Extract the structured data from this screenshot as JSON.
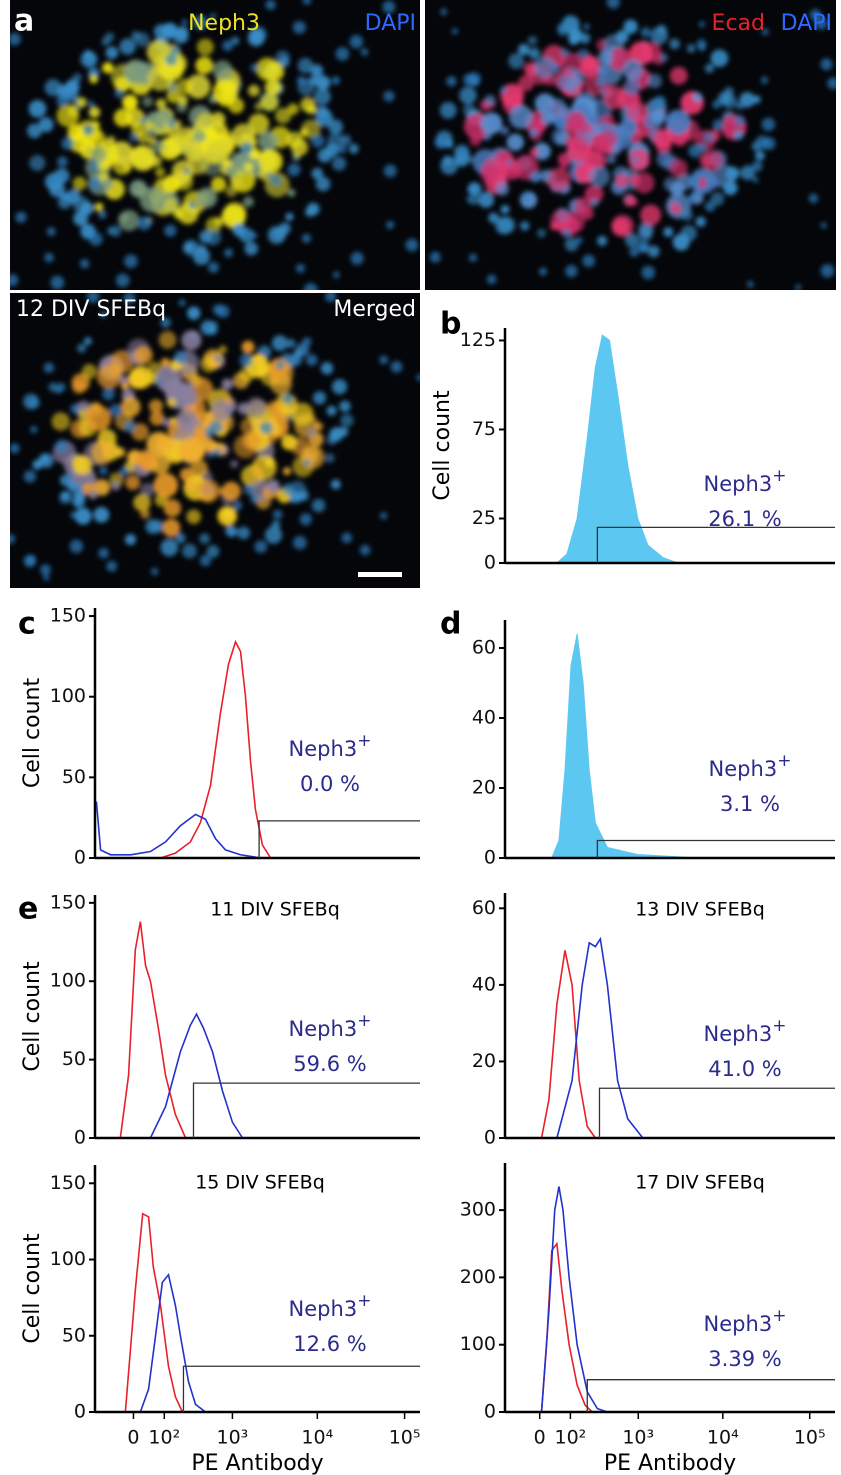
{
  "panel_a": {
    "panel": "a",
    "top_left": [
      "Neph3",
      "DAPI"
    ],
    "top_right": [
      "Ecad",
      "DAPI"
    ],
    "bottom_left": [
      "12 DIV SFEBq",
      "Merged"
    ]
  },
  "chart_data": [
    {
      "type": "area",
      "panel": "b",
      "y_label": "Cell count",
      "xscale": "biexponential",
      "xlim": [
        -120,
        195000
      ],
      "ylim": [
        0,
        132
      ],
      "yticks": [
        0,
        25,
        75,
        125
      ],
      "series": [
        {
          "color": "#5cc8f2",
          "x": [
            46,
            84,
            135,
            201,
            268,
            339,
            425,
            546,
            738,
            987,
            1314,
            2002,
            3025
          ],
          "values": [
            0,
            5,
            25,
            70,
            110,
            128,
            125,
            95,
            55,
            25,
            10,
            3,
            0
          ]
        }
      ],
      "gate": {
        "x": 287,
        "level": 20
      },
      "gate_label": "Neph3",
      "gate_label_sup": "+",
      "gate_percent": "26.1 %"
    },
    {
      "type": "line",
      "panel": "c",
      "y_label": "Cell count",
      "xscale": "biexponential",
      "xlim": [
        -140,
        150000
      ],
      "ylim": [
        0,
        155
      ],
      "yticks": [
        0,
        50,
        100,
        150
      ],
      "series": [
        {
          "color": "#e8202a",
          "x": [
            83,
            161,
            278,
            386,
            527,
            709,
            893,
            1091,
            1257,
            1444,
            1659,
            1900,
            2300,
            2867
          ],
          "values": [
            0,
            3,
            10,
            22,
            45,
            90,
            120,
            134,
            128,
            100,
            60,
            30,
            8,
            0
          ]
        },
        {
          "color": "#2233cc",
          "x": [
            -132,
            -110,
            -66,
            -6,
            45,
            106,
            195,
            329,
            452,
            612,
            820,
            1257,
            2182
          ],
          "values": [
            35,
            5,
            2,
            2,
            4,
            10,
            20,
            27,
            24,
            12,
            5,
            2,
            0
          ]
        }
      ],
      "gate": {
        "x": 2100,
        "level": 23
      },
      "gate_label": "Neph3",
      "gate_label_sup": "+",
      "gate_percent": "0.0 %"
    },
    {
      "type": "area",
      "panel": "d",
      "xscale": "biexponential",
      "xlim": [
        -120,
        195000
      ],
      "ylim": [
        0,
        68
      ],
      "yticks": [
        0,
        20,
        40,
        60
      ],
      "series": [
        {
          "color": "#5cc8f2",
          "x": [
            30,
            53,
            76,
            103,
            135,
            172,
            216,
            268,
            398,
            987,
            5216
          ],
          "values": [
            0,
            5,
            25,
            55,
            64,
            50,
            25,
            10,
            3,
            1,
            0
          ]
        }
      ],
      "gate": {
        "x": 287,
        "level": 5
      },
      "gate_label": "Neph3",
      "gate_label_sup": "+",
      "gate_percent": "3.1 %"
    },
    {
      "type": "line",
      "panel": "e",
      "title": "11 DIV SFEBq",
      "y_label": "Cell count",
      "xscale": "biexponential",
      "xlim": [
        -140,
        150000
      ],
      "ylim": [
        0,
        155
      ],
      "yticks": [
        0,
        50,
        100,
        150
      ],
      "series": [
        {
          "color": "#e8202a",
          "x": [
            -33,
            -11,
            4,
            16,
            30,
            45,
            74,
            106,
            161,
            235
          ],
          "values": [
            0,
            40,
            120,
            138,
            110,
            100,
            70,
            40,
            15,
            0
          ]
        },
        {
          "color": "#2233cc",
          "x": [
            45,
            106,
            195,
            278,
            340,
            425,
            560,
            752,
            1002,
            1330
          ],
          "values": [
            0,
            20,
            55,
            72,
            79,
            70,
            55,
            30,
            10,
            0
          ]
        }
      ],
      "gate": {
        "x": 308,
        "level": 35
      },
      "gate_label": "Neph3",
      "gate_label_sup": "+",
      "gate_percent": "59.6 %"
    },
    {
      "type": "line",
      "title": "13 DIV SFEBq",
      "xscale": "biexponential",
      "xlim": [
        -120,
        195000
      ],
      "ylim": [
        0,
        64
      ],
      "yticks": [
        0,
        20,
        40,
        60
      ],
      "series": [
        {
          "color": "#e8202a",
          "x": [
            4,
            22,
            46,
            76,
            108,
            147,
            201,
            268
          ],
          "values": [
            0,
            10,
            35,
            49,
            40,
            15,
            3,
            0
          ]
        },
        {
          "color": "#2233cc",
          "x": [
            46,
            108,
            166,
            216,
            268,
            317,
            398,
            546,
            738,
            1140
          ],
          "values": [
            0,
            15,
            40,
            51,
            50,
            52,
            40,
            15,
            5,
            0
          ]
        }
      ],
      "gate": {
        "x": 308,
        "level": 13
      },
      "gate_label": "Neph3",
      "gate_label_sup": "+",
      "gate_percent": "41.0 %"
    },
    {
      "type": "line",
      "title": "15 DIV SFEBq",
      "y_label": "Cell count",
      "x_label": "PE Antibody",
      "xscale": "biexponential",
      "xlim": [
        -140,
        150000
      ],
      "ylim": [
        0,
        162
      ],
      "yticks": [
        0,
        50,
        100,
        150
      ],
      "xticks": [
        0,
        {
          "value": 100,
          "label": "10²"
        },
        {
          "value": 1000,
          "label": "10³"
        },
        {
          "value": 10000,
          "label": "10⁴"
        },
        {
          "value": 100000,
          "label": "10⁵"
        }
      ],
      "series": [
        {
          "color": "#e8202a",
          "x": [
            -19,
            4,
            22,
            39,
            55,
            83,
            121,
            161,
            210
          ],
          "values": [
            0,
            80,
            130,
            128,
            95,
            70,
            30,
            10,
            0
          ]
        },
        {
          "color": "#2233cc",
          "x": [
            16,
            39,
            63,
            91,
            121,
            161,
            195,
            260,
            329,
            452
          ],
          "values": [
            0,
            15,
            50,
            85,
            90,
            70,
            50,
            20,
            5,
            0
          ]
        }
      ],
      "gate": {
        "x": 218,
        "level": 30
      },
      "gate_label": "Neph3",
      "gate_label_sup": "+",
      "gate_percent": "12.6 %"
    },
    {
      "type": "line",
      "title": "17 DIV SFEBq",
      "x_label": "PE Antibody",
      "xscale": "biexponential",
      "xlim": [
        -120,
        195000
      ],
      "ylim": [
        0,
        370
      ],
      "yticks": [
        0,
        100,
        200,
        300
      ],
      "xticks": [
        0,
        {
          "value": 100,
          "label": "10²"
        },
        {
          "value": 1000,
          "label": "10³"
        },
        {
          "value": 10000,
          "label": "10⁴"
        },
        {
          "value": 100000,
          "label": "10⁵"
        }
      ],
      "series": [
        {
          "color": "#e8202a",
          "x": [
            4,
            16,
            30,
            46,
            64,
            94,
            135,
            186,
            241
          ],
          "values": [
            0,
            100,
            240,
            250,
            180,
            100,
            40,
            10,
            0
          ]
        },
        {
          "color": "#2233cc",
          "x": [
            4,
            22,
            39,
            53,
            68,
            94,
            135,
            201,
            287,
            398
          ],
          "values": [
            0,
            150,
            300,
            335,
            300,
            200,
            100,
            30,
            5,
            0
          ]
        }
      ],
      "gate": {
        "x": 201,
        "level": 48
      },
      "gate_label": "Neph3",
      "gate_label_sup": "+",
      "gate_percent": "3.39 %"
    }
  ]
}
